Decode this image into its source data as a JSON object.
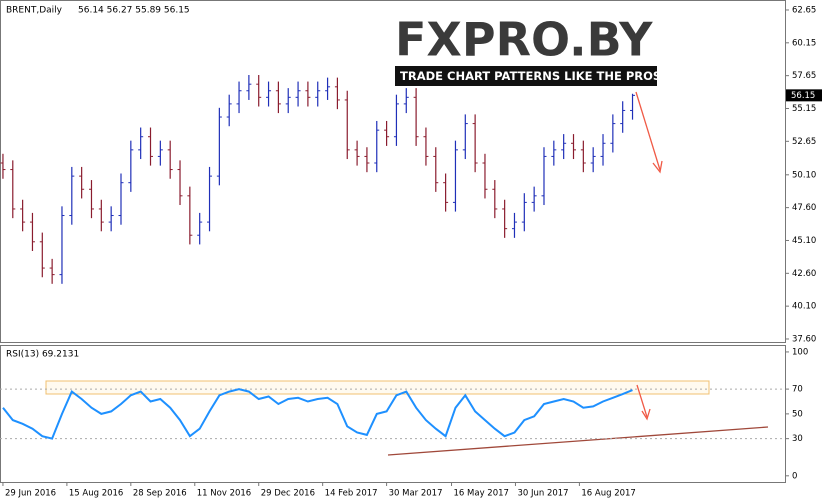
{
  "chart_data": [
    {
      "type": "ohlc",
      "symbol": "BRENT,Daily",
      "quote": "56.14 56.27 55.89 56.15",
      "last_price_label": "56.15",
      "logo": "FXPRO.BY",
      "logo_tagline": "TRADE CHART PATTERNS LIKE THE PROS",
      "up_color": "#1f2fb8",
      "down_color": "#8a1c2e",
      "xlim": [
        -0.3,
        79.5
      ],
      "ylim": [
        37.37,
        63.41
      ],
      "yticks": [
        62.65,
        60.15,
        57.65,
        55.15,
        52.65,
        {
          "value": 50.1,
          "label": "50.10"
        },
        {
          "value": 47.6,
          "label": "47.60"
        },
        {
          "value": 45.1,
          "label": "45.10"
        },
        {
          "value": 42.6,
          "label": "42.60"
        },
        {
          "value": 40.1,
          "label": "40.10"
        },
        {
          "value": 37.6,
          "label": "37.60"
        }
      ],
      "open": [
        51.0,
        50.5,
        47.5,
        46.5,
        45.0,
        43.0,
        42.5,
        47.0,
        50.0,
        49.0,
        47.5,
        46.5,
        47.0,
        49.5,
        52.0,
        53.0,
        51.5,
        52.0,
        50.5,
        48.5,
        45.5,
        46.5,
        50.0,
        54.5,
        55.5,
        56.5,
        57.0,
        56.0,
        56.5,
        55.5,
        56.0,
        56.5,
        56.0,
        56.5,
        56.8,
        55.8,
        52.0,
        51.5,
        51.0,
        53.5,
        53.0,
        55.5,
        56.0,
        53.0,
        51.5,
        49.5,
        48.0,
        52.0,
        54.0,
        51.0,
        49.0,
        47.5,
        46.0,
        46.5,
        48.0,
        48.5,
        51.5,
        52.0,
        52.5,
        52.0,
        51.0,
        51.5,
        52.5,
        54.0,
        55.0
      ],
      "high": [
        51.7,
        51.2,
        48.2,
        47.2,
        45.7,
        43.7,
        47.7,
        50.7,
        50.7,
        49.7,
        48.2,
        47.7,
        50.2,
        52.7,
        53.7,
        53.7,
        52.7,
        52.7,
        51.2,
        49.2,
        47.2,
        50.7,
        55.2,
        56.2,
        57.2,
        57.7,
        57.7,
        57.2,
        57.2,
        56.7,
        57.2,
        57.2,
        57.2,
        57.5,
        57.5,
        56.5,
        52.7,
        52.2,
        54.2,
        54.2,
        56.2,
        56.7,
        56.7,
        53.7,
        52.2,
        50.2,
        52.7,
        54.7,
        54.7,
        51.7,
        49.7,
        48.2,
        47.2,
        48.7,
        49.2,
        52.2,
        52.7,
        53.2,
        53.2,
        52.7,
        52.2,
        53.2,
        54.7,
        55.7,
        56.27
      ],
      "low": [
        49.8,
        46.8,
        45.8,
        44.3,
        42.3,
        41.8,
        41.8,
        46.3,
        48.3,
        46.8,
        45.8,
        45.8,
        46.3,
        48.8,
        51.3,
        50.8,
        50.8,
        49.8,
        47.8,
        44.8,
        44.8,
        45.8,
        49.3,
        53.8,
        54.8,
        55.8,
        55.3,
        55.3,
        54.8,
        54.8,
        55.3,
        55.3,
        55.3,
        55.8,
        55.1,
        51.3,
        50.8,
        50.3,
        50.3,
        52.3,
        52.3,
        54.8,
        52.3,
        50.8,
        48.8,
        47.3,
        47.3,
        51.3,
        50.3,
        48.3,
        46.8,
        45.3,
        45.3,
        45.8,
        47.3,
        47.8,
        50.8,
        51.3,
        51.3,
        50.3,
        50.3,
        50.8,
        51.8,
        53.3,
        54.3
      ],
      "close": [
        50.5,
        47.5,
        46.5,
        45.0,
        43.0,
        42.5,
        47.0,
        50.0,
        49.0,
        47.5,
        46.5,
        47.0,
        49.5,
        52.0,
        53.0,
        51.5,
        52.0,
        50.5,
        48.5,
        45.5,
        46.5,
        50.0,
        54.5,
        55.5,
        56.5,
        57.0,
        56.0,
        56.5,
        55.5,
        56.0,
        56.5,
        56.0,
        56.5,
        56.8,
        55.8,
        52.0,
        51.5,
        51.0,
        53.5,
        53.0,
        55.5,
        56.0,
        53.0,
        51.5,
        49.5,
        48.0,
        52.0,
        54.0,
        51.0,
        49.0,
        47.5,
        46.0,
        46.5,
        48.0,
        48.5,
        51.5,
        52.0,
        52.5,
        52.0,
        51.0,
        51.5,
        52.5,
        54.0,
        55.0,
        56.15
      ]
    },
    {
      "type": "line",
      "title": "RSI(13) 69.2131",
      "color": "#1e90ff",
      "xlim": [
        -0.3,
        79.5
      ],
      "ylim": [
        -5,
        105.6
      ],
      "yticks": [
        100,
        70,
        50,
        30,
        0
      ],
      "xticks": [
        {
          "value": 0,
          "label": "29 Jun 2016"
        },
        {
          "value": 6.5,
          "label": "15 Aug 2016"
        },
        {
          "value": 13,
          "label": "28 Sep 2016"
        },
        {
          "value": 19.5,
          "label": "11 Nov 2016"
        },
        {
          "value": 26,
          "label": "29 Dec 2016"
        },
        {
          "value": 32.5,
          "label": "14 Feb 2017"
        },
        {
          "value": 39,
          "label": "30 Mar 2017"
        },
        {
          "value": 45.6,
          "label": "16 May 2017"
        },
        {
          "value": 52.1,
          "label": "30 Jun 2017"
        },
        {
          "value": 58.6,
          "label": "16 Aug 2017"
        }
      ],
      "values": [
        55,
        45,
        42,
        38,
        32,
        30,
        50,
        68,
        62,
        55,
        50,
        52,
        58,
        65,
        68,
        60,
        62,
        55,
        45,
        32,
        38,
        52,
        65,
        68,
        70,
        68,
        62,
        64,
        58,
        62,
        63,
        60,
        62,
        63,
        58,
        40,
        35,
        33,
        50,
        52,
        65,
        68,
        55,
        45,
        38,
        32,
        55,
        65,
        52,
        45,
        38,
        32,
        35,
        45,
        48,
        58,
        60,
        62,
        60,
        55,
        56,
        60,
        63,
        66,
        69.2131
      ]
    }
  ]
}
